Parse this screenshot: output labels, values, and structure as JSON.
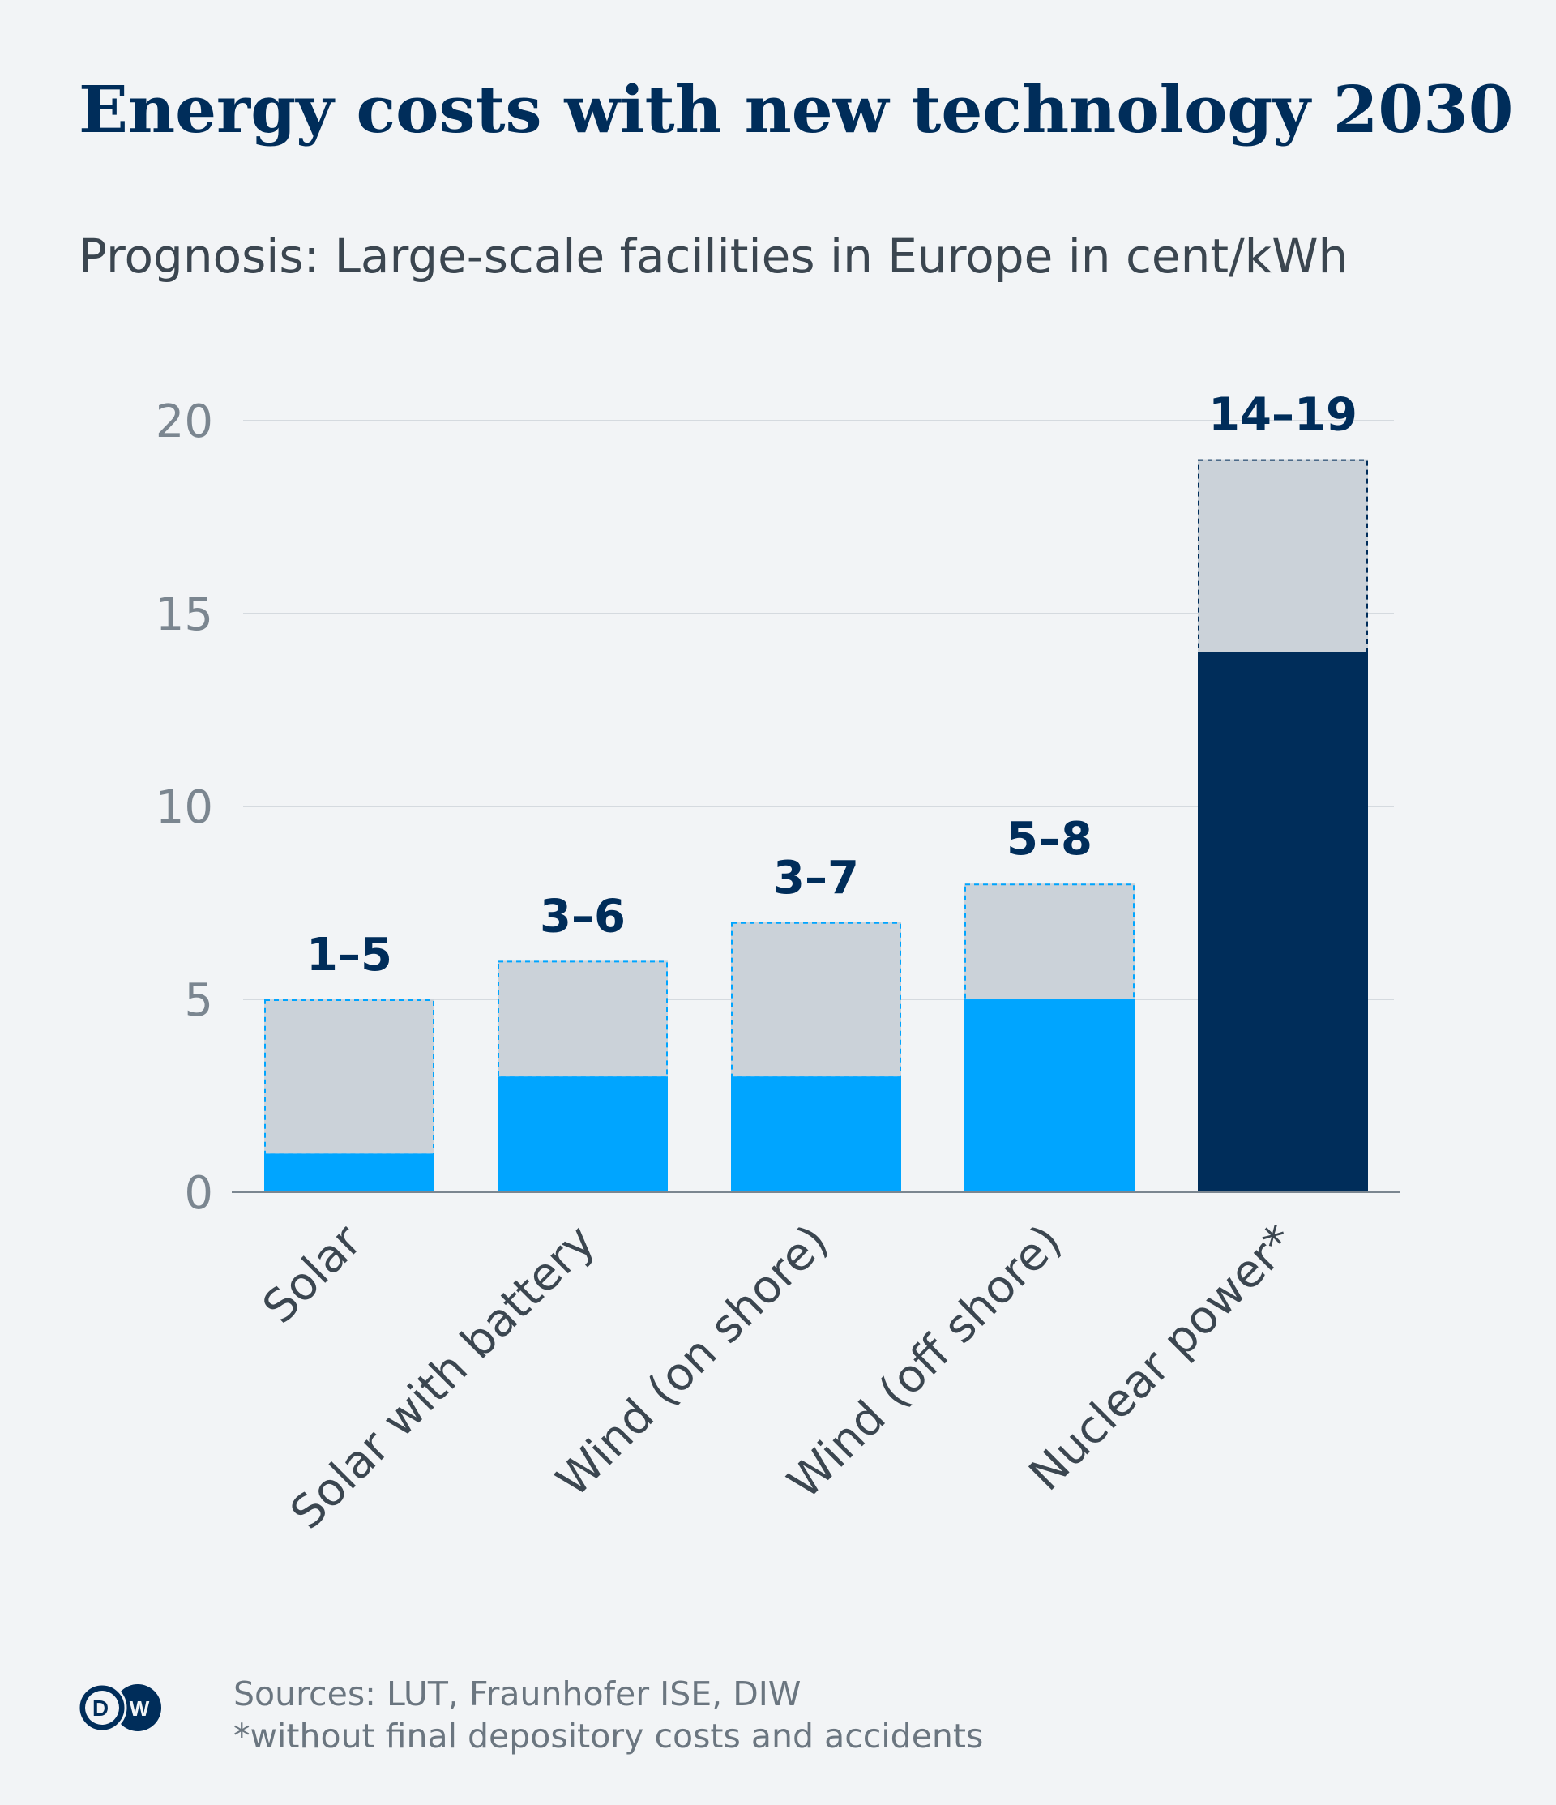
{
  "title": "Energy costs with new technology 2030",
  "subtitle": "Prognosis: Large-scale facilities in Europe in cent/kWh",
  "colors": {
    "renewable": "#00a5ff",
    "nuclear": "#002d5a",
    "range": "#cbd2d9",
    "grid": "#d5dadf",
    "axis_text": "#7b8690",
    "category_text": "#3b4650"
  },
  "chart_data": {
    "type": "bar",
    "categories": [
      "Solar",
      "Solar with battery",
      "Wind (on shore)",
      "Wind (off shore)",
      "Nuclear power*"
    ],
    "series": [
      {
        "name": "low",
        "values": [
          1,
          3,
          3,
          5,
          14
        ]
      },
      {
        "name": "high",
        "values": [
          5,
          6,
          7,
          8,
          19
        ]
      }
    ],
    "data_labels": [
      "1–5",
      "3–6",
      "3–7",
      "5–8",
      "14–19"
    ],
    "ylim": [
      0,
      20
    ],
    "yticks": [
      0,
      5,
      10,
      15,
      20
    ],
    "grid": true,
    "xlabel": "",
    "ylabel": ""
  },
  "footer": {
    "logo_text": "DW",
    "sources": "Sources: LUT, Fraunhofer ISE, DIW",
    "note": "*without final depository costs and accidents"
  }
}
